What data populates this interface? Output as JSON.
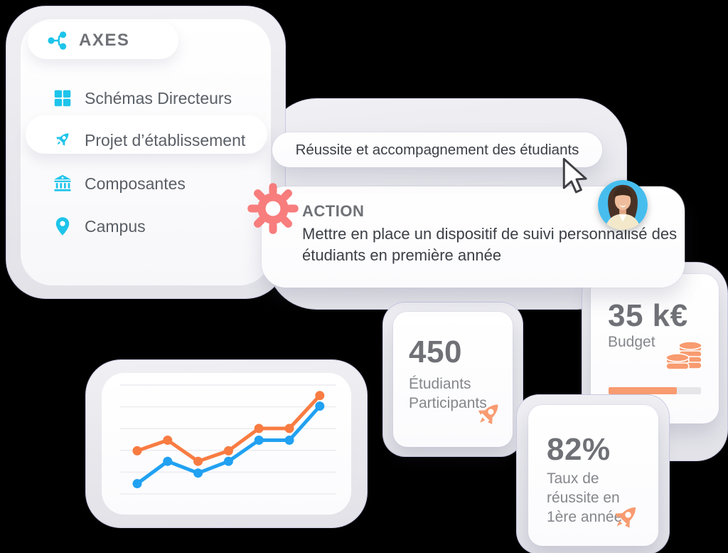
{
  "colors": {
    "cyan": "#1ec4ea",
    "coral": "#f87d7d",
    "orange": "#f87c42",
    "blue": "#21a1f1",
    "salmon": "#f89b70",
    "progress_track": "#e6e6e8",
    "text_dark": "#3c4046",
    "text_mid": "#6f7176",
    "text_light": "#85878c",
    "text_menu": "#5a5f66",
    "gridline": "#ececf0"
  },
  "axes_panel": {
    "title": "AXES",
    "items": [
      {
        "label": "Schémas Directeurs",
        "icon": "grid-icon",
        "active": false
      },
      {
        "label": "Projet d’établissement",
        "icon": "rocket-icon",
        "active": true
      },
      {
        "label": "Composantes",
        "icon": "bank-icon",
        "active": false
      },
      {
        "label": "Campus",
        "icon": "pin-icon",
        "active": false
      }
    ]
  },
  "tag_pill": {
    "label": "Réussite et accompagnement des étudiants"
  },
  "action_card": {
    "title": "ACTION",
    "description": "Mettre en place un dispositif de suivi personnalisé des étudiants en première année"
  },
  "stats": [
    {
      "value": "450",
      "label": "Étudiants Participants",
      "icon": "rocket-icon"
    },
    {
      "value": "35 k€",
      "label": "Budget",
      "icon": "coins-icon",
      "progress_percent": 74
    },
    {
      "value": "82%",
      "label": "Taux de réussite en 1ère année",
      "icon": "rocket-icon"
    }
  ],
  "chart_data": {
    "type": "line",
    "x": [
      1,
      2,
      3,
      4,
      5,
      6,
      7
    ],
    "series": [
      {
        "name": "serie-orange",
        "color_key": "orange",
        "values": [
          41,
          50,
          32,
          41,
          60,
          60,
          88
        ]
      },
      {
        "name": "serie-blue",
        "color_key": "blue",
        "values": [
          13,
          32,
          22,
          32,
          50,
          50,
          79
        ]
      }
    ],
    "ylim": [
      0,
      100
    ],
    "gridlines": 6,
    "grid": true,
    "legend": false,
    "title": "",
    "xlabel": "",
    "ylabel": ""
  }
}
